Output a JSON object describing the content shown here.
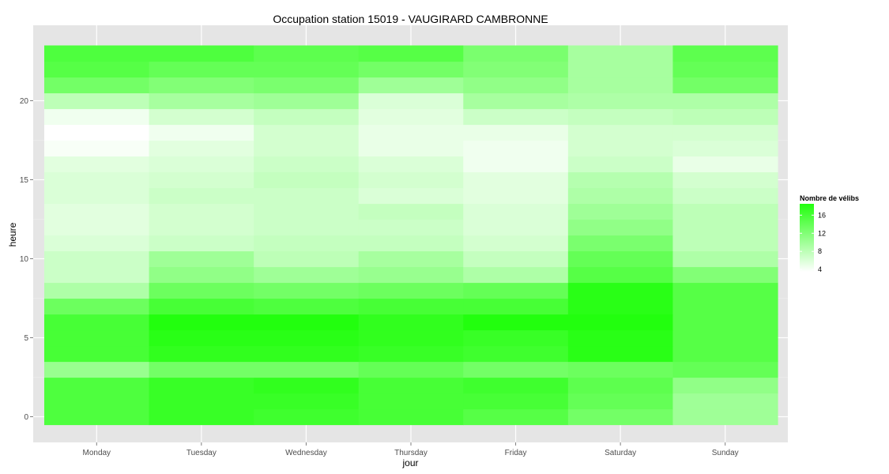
{
  "chart_data": {
    "type": "heatmap",
    "title": "Occupation station 15019 - VAUGIRARD CAMBRONNE",
    "xlabel": "jour",
    "ylabel": "heure",
    "x_categories": [
      "Monday",
      "Tuesday",
      "Wednesday",
      "Thursday",
      "Friday",
      "Saturday",
      "Sunday"
    ],
    "y_values": [
      0,
      1,
      2,
      3,
      4,
      5,
      6,
      7,
      8,
      9,
      10,
      11,
      12,
      13,
      14,
      15,
      16,
      17,
      18,
      19,
      20,
      21,
      22,
      23
    ],
    "y_ticks": [
      0,
      5,
      10,
      15,
      20
    ],
    "ylim": [
      -0.5,
      23.5
    ],
    "grid": true,
    "legend": {
      "title": "Nombre de vélibs",
      "ticks": [
        4,
        8,
        12,
        16
      ],
      "range": [
        3.5,
        18.5
      ],
      "low_color": "#ffffff",
      "high_color": "#22ff0e",
      "position": "right"
    },
    "values": [
      [
        15.5,
        17.0,
        16.5,
        16.0,
        15.0,
        13.0,
        10.0
      ],
      [
        15.5,
        17.0,
        17.0,
        16.0,
        16.0,
        14.0,
        10.0
      ],
      [
        15.5,
        17.0,
        17.5,
        16.0,
        16.5,
        14.5,
        11.0
      ],
      [
        10.5,
        13.0,
        13.0,
        14.0,
        13.0,
        13.5,
        14.0
      ],
      [
        16.0,
        17.5,
        17.5,
        17.0,
        16.5,
        18.0,
        15.0
      ],
      [
        16.0,
        18.0,
        18.0,
        17.5,
        17.0,
        18.0,
        15.0
      ],
      [
        16.0,
        18.5,
        18.5,
        17.5,
        18.5,
        18.5,
        15.0
      ],
      [
        13.5,
        16.0,
        15.5,
        16.0,
        16.0,
        18.0,
        15.0
      ],
      [
        9.0,
        13.5,
        13.0,
        13.5,
        14.0,
        18.0,
        15.0
      ],
      [
        7.0,
        11.0,
        10.0,
        10.5,
        9.0,
        15.0,
        12.0
      ],
      [
        7.0,
        10.0,
        8.0,
        9.5,
        7.5,
        14.0,
        9.0
      ],
      [
        6.0,
        7.0,
        7.5,
        7.5,
        6.5,
        12.5,
        8.0
      ],
      [
        5.5,
        6.5,
        7.0,
        7.0,
        6.0,
        11.0,
        8.0
      ],
      [
        5.5,
        6.5,
        7.0,
        7.5,
        6.0,
        10.0,
        8.0
      ],
      [
        6.0,
        7.0,
        7.0,
        6.0,
        5.5,
        9.0,
        7.0
      ],
      [
        6.0,
        6.5,
        7.5,
        6.5,
        5.5,
        8.5,
        6.5
      ],
      [
        5.5,
        6.0,
        7.0,
        6.0,
        4.5,
        7.0,
        5.0
      ],
      [
        4.0,
        5.5,
        6.5,
        5.0,
        4.5,
        6.5,
        6.0
      ],
      [
        3.5,
        4.5,
        6.5,
        5.0,
        5.0,
        6.5,
        6.5
      ],
      [
        4.5,
        6.5,
        7.5,
        5.5,
        7.0,
        7.5,
        8.0
      ],
      [
        8.0,
        9.5,
        10.0,
        6.0,
        9.5,
        9.0,
        9.0
      ],
      [
        13.0,
        12.0,
        12.5,
        10.0,
        11.0,
        9.5,
        13.0
      ],
      [
        15.0,
        14.0,
        14.0,
        13.0,
        12.0,
        9.5,
        14.0
      ],
      [
        15.5,
        15.5,
        14.5,
        15.0,
        12.5,
        9.5,
        14.5
      ]
    ]
  }
}
